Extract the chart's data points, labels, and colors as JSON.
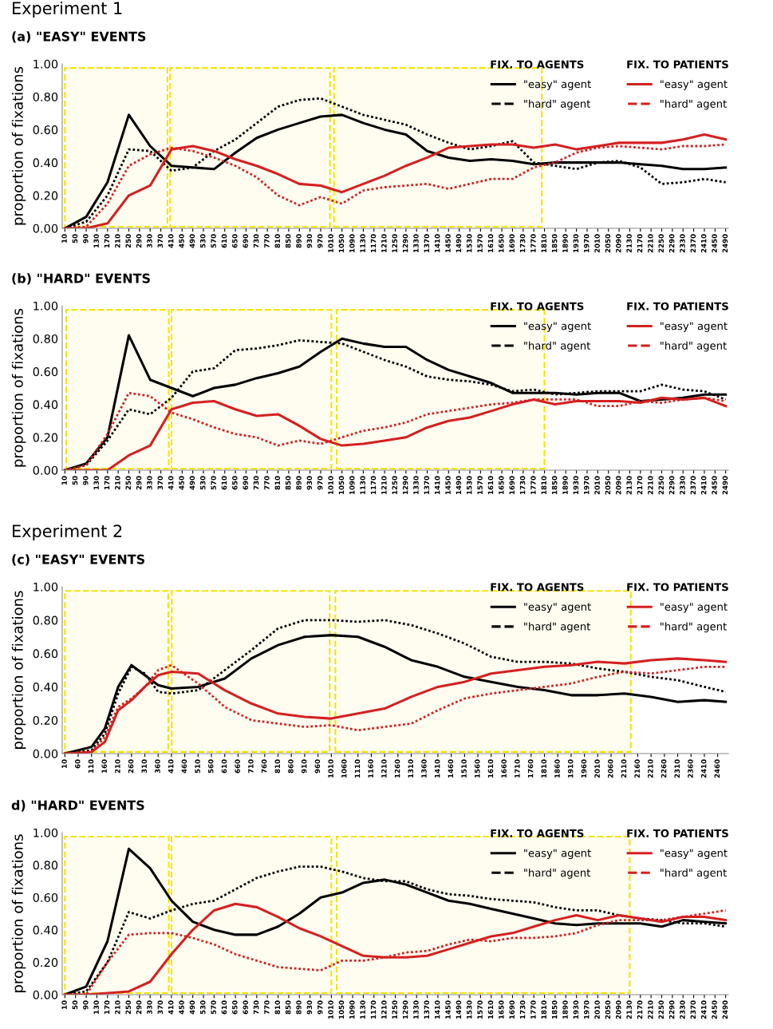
{
  "chart_data": [
    {
      "type": "line",
      "title": "Experiment 1",
      "subtitle": "(a) \"EASY\" EVENTS",
      "ylabel": "proportion of fixations",
      "legend": "top right",
      "annotations": [
        "FIX. TO AGENTS",
        "FIX. TO PATIENTS"
      ],
      "x": [
        10,
        90,
        170,
        250,
        330,
        410,
        490,
        570,
        650,
        730,
        810,
        890,
        970,
        1050,
        1130,
        1210,
        1290,
        1370,
        1450,
        1530,
        1610,
        1690,
        1770,
        1850,
        1930,
        2010,
        2090,
        2170,
        2250,
        2330,
        2410,
        2490
      ],
      "series": [
        {
          "name": "\"easy\" agent",
          "color": "#000000",
          "line_style": "solid",
          "values": [
            0,
            0.07,
            0.28,
            0.69,
            0.5,
            0.38,
            0.37,
            0.36,
            0.46,
            0.55,
            0.6,
            0.64,
            0.68,
            0.69,
            0.64,
            0.6,
            0.57,
            0.47,
            0.43,
            0.41,
            0.42,
            0.41,
            0.39,
            0.4,
            0.4,
            0.4,
            0.4,
            0.39,
            0.38,
            0.36,
            0.36,
            0.37
          ]
        },
        {
          "name": "\"hard\" agent",
          "color": "#000000",
          "line_style": "dotted",
          "values": [
            0,
            0.04,
            0.2,
            0.48,
            0.47,
            0.35,
            0.37,
            0.47,
            0.54,
            0.64,
            0.74,
            0.78,
            0.79,
            0.74,
            0.69,
            0.66,
            0.63,
            0.57,
            0.52,
            0.48,
            0.5,
            0.53,
            0.4,
            0.38,
            0.36,
            0.4,
            0.41,
            0.37,
            0.27,
            0.28,
            0.3,
            0.28
          ]
        },
        {
          "name": "\"easy\" agent",
          "color": "#d42020",
          "line_style": "solid",
          "values": [
            0,
            0,
            0.03,
            0.2,
            0.26,
            0.48,
            0.5,
            0.47,
            0.42,
            0.38,
            0.33,
            0.27,
            0.26,
            0.22,
            0.27,
            0.32,
            0.38,
            0.43,
            0.49,
            0.5,
            0.51,
            0.51,
            0.49,
            0.51,
            0.48,
            0.5,
            0.52,
            0.52,
            0.52,
            0.54,
            0.57,
            0.54
          ]
        },
        {
          "name": "\"hard\" agent",
          "color": "#d42020",
          "line_style": "dotted",
          "values": [
            0,
            0.01,
            0.15,
            0.38,
            0.45,
            0.49,
            0.47,
            0.43,
            0.38,
            0.31,
            0.2,
            0.14,
            0.19,
            0.15,
            0.23,
            0.25,
            0.26,
            0.27,
            0.24,
            0.27,
            0.3,
            0.3,
            0.37,
            0.4,
            0.46,
            0.49,
            0.5,
            0.49,
            0.48,
            0.5,
            0.5,
            0.51
          ]
        }
      ],
      "xlim": [
        0,
        2500
      ],
      "ylim": [
        0,
        1
      ],
      "yticks": [
        {
          "value": 0,
          "label": "0.00"
        },
        {
          "value": 0.2,
          "label": "0.20"
        },
        {
          "value": 0.4,
          "label": "0.40"
        },
        {
          "value": 0.6,
          "label": "0.60"
        },
        {
          "value": 0.8,
          "label": "0.80"
        },
        {
          "value": 1,
          "label": "1.00"
        }
      ],
      "xticks": [
        10,
        50,
        90,
        130,
        170,
        210,
        250,
        290,
        330,
        370,
        410,
        450,
        490,
        530,
        570,
        610,
        650,
        690,
        730,
        770,
        810,
        850,
        890,
        930,
        970,
        1010,
        1050,
        1090,
        1130,
        1170,
        1210,
        1250,
        1290,
        1330,
        1370,
        1410,
        1450,
        1490,
        1530,
        1570,
        1610,
        1650,
        1690,
        1730,
        1770,
        1810,
        1850,
        1890,
        1930,
        1970,
        2010,
        2050,
        2090,
        2130,
        2170,
        2210,
        2250,
        2290,
        2330,
        2370,
        2410,
        2450,
        2490
      ],
      "bands": [
        {
          "axis": "x",
          "from": 10,
          "to": 395,
          "color": "#f5e400"
        },
        {
          "axis": "x",
          "from": 405,
          "to": 1005,
          "color": "#f5e400"
        },
        {
          "axis": "x",
          "from": 1020,
          "to": 1800,
          "color": "#f5e400"
        }
      ]
    },
    {
      "type": "line",
      "title": "(b) \"HARD\" EVENTS",
      "ylabel": "proportion of fixations",
      "legend": "top right",
      "annotations": [
        "FIX. TO AGENTS",
        "FIX. TO PATIENTS"
      ],
      "x": [
        10,
        90,
        170,
        250,
        330,
        410,
        490,
        570,
        650,
        730,
        810,
        890,
        970,
        1050,
        1130,
        1210,
        1290,
        1370,
        1450,
        1530,
        1610,
        1690,
        1770,
        1850,
        1930,
        2010,
        2090,
        2170,
        2250,
        2330,
        2410,
        2490
      ],
      "series": [
        {
          "name": "\"easy\" agent",
          "color": "#000000",
          "line_style": "solid",
          "values": [
            0,
            0.04,
            0.2,
            0.82,
            0.55,
            0.5,
            0.45,
            0.5,
            0.52,
            0.56,
            0.59,
            0.63,
            0.72,
            0.8,
            0.77,
            0.75,
            0.75,
            0.67,
            0.61,
            0.57,
            0.53,
            0.47,
            0.47,
            0.47,
            0.46,
            0.47,
            0.47,
            0.42,
            0.43,
            0.44,
            0.46,
            0.46
          ]
        },
        {
          "name": "\"hard\" agent",
          "color": "#000000",
          "line_style": "dotted",
          "values": [
            0,
            0.03,
            0.18,
            0.37,
            0.34,
            0.44,
            0.6,
            0.62,
            0.73,
            0.74,
            0.76,
            0.79,
            0.78,
            0.77,
            0.72,
            0.67,
            0.63,
            0.57,
            0.55,
            0.54,
            0.52,
            0.48,
            0.49,
            0.46,
            0.47,
            0.48,
            0.48,
            0.48,
            0.52,
            0.49,
            0.48,
            0.43
          ]
        },
        {
          "name": "\"easy\" agent",
          "color": "#d42020",
          "line_style": "solid",
          "values": [
            0,
            0,
            0,
            0.09,
            0.15,
            0.37,
            0.41,
            0.42,
            0.37,
            0.33,
            0.34,
            0.27,
            0.19,
            0.15,
            0.16,
            0.18,
            0.2,
            0.26,
            0.3,
            0.32,
            0.36,
            0.4,
            0.43,
            0.4,
            0.42,
            0.42,
            0.42,
            0.41,
            0.44,
            0.43,
            0.44,
            0.39
          ]
        },
        {
          "name": "\"hard\" agent",
          "color": "#d42020",
          "line_style": "dotted",
          "values": [
            0,
            0.03,
            0.22,
            0.47,
            0.45,
            0.35,
            0.31,
            0.26,
            0.22,
            0.2,
            0.15,
            0.18,
            0.16,
            0.2,
            0.24,
            0.26,
            0.29,
            0.34,
            0.36,
            0.38,
            0.4,
            0.41,
            0.43,
            0.43,
            0.43,
            0.39,
            0.39,
            0.42,
            0.41,
            0.43,
            0.44,
            0.42
          ]
        }
      ],
      "xlim": [
        0,
        2500
      ],
      "ylim": [
        0,
        1
      ],
      "yticks": [
        {
          "value": 0,
          "label": "0.00"
        },
        {
          "value": 0.2,
          "label": "0.20"
        },
        {
          "value": 0.4,
          "label": "0.40"
        },
        {
          "value": 0.6,
          "label": "0.60"
        },
        {
          "value": 0.8,
          "label": "0.80"
        },
        {
          "value": 1,
          "label": "1.00"
        }
      ],
      "xticks": [
        10,
        50,
        90,
        130,
        170,
        210,
        250,
        290,
        330,
        370,
        410,
        450,
        490,
        530,
        570,
        610,
        650,
        690,
        730,
        770,
        810,
        850,
        890,
        930,
        970,
        1010,
        1050,
        1090,
        1130,
        1170,
        1210,
        1250,
        1290,
        1330,
        1370,
        1410,
        1450,
        1490,
        1530,
        1570,
        1610,
        1650,
        1690,
        1730,
        1770,
        1810,
        1850,
        1890,
        1930,
        1970,
        2010,
        2050,
        2090,
        2130,
        2170,
        2210,
        2250,
        2290,
        2330,
        2370,
        2410,
        2450,
        2490
      ],
      "bands": [
        {
          "axis": "x",
          "from": 15,
          "to": 400,
          "color": "#f5e400"
        },
        {
          "axis": "x",
          "from": 410,
          "to": 1010,
          "color": "#f5e400"
        },
        {
          "axis": "x",
          "from": 1030,
          "to": 1810,
          "color": "#f5e400"
        }
      ]
    },
    {
      "type": "line",
      "title": "Experiment 2",
      "subtitle": "(c) \"EASY\" EVENTS",
      "ylabel": "proportion of fixations",
      "legend": "top right",
      "annotations": [
        "FIX. TO AGENTS",
        "FIX. TO PATIENTS"
      ],
      "x": [
        10,
        110,
        160,
        210,
        260,
        310,
        360,
        410,
        510,
        610,
        710,
        810,
        910,
        1010,
        1110,
        1210,
        1310,
        1410,
        1510,
        1610,
        1710,
        1810,
        1910,
        2010,
        2110,
        2210,
        2310,
        2410,
        2490
      ],
      "series": [
        {
          "name": "\"easy\" agent",
          "color": "#000000",
          "line_style": "solid",
          "values": [
            0,
            0.04,
            0.15,
            0.4,
            0.53,
            0.47,
            0.41,
            0.39,
            0.4,
            0.45,
            0.57,
            0.65,
            0.7,
            0.71,
            0.7,
            0.64,
            0.56,
            0.52,
            0.46,
            0.43,
            0.4,
            0.38,
            0.35,
            0.35,
            0.36,
            0.34,
            0.31,
            0.32,
            0.31
          ]
        },
        {
          "name": "\"hard\" agent",
          "color": "#000000",
          "line_style": "dotted",
          "values": [
            0,
            0.02,
            0.12,
            0.36,
            0.52,
            0.48,
            0.37,
            0.36,
            0.38,
            0.5,
            0.62,
            0.75,
            0.8,
            0.8,
            0.79,
            0.8,
            0.77,
            0.72,
            0.66,
            0.58,
            0.55,
            0.55,
            0.54,
            0.51,
            0.49,
            0.46,
            0.44,
            0.4,
            0.37
          ]
        },
        {
          "name": "\"easy\" agent",
          "color": "#d42020",
          "line_style": "solid",
          "values": [
            0,
            0.01,
            0.07,
            0.26,
            0.32,
            0.4,
            0.47,
            0.49,
            0.48,
            0.38,
            0.3,
            0.24,
            0.22,
            0.21,
            0.24,
            0.27,
            0.34,
            0.4,
            0.43,
            0.48,
            0.5,
            0.52,
            0.53,
            0.55,
            0.54,
            0.56,
            0.57,
            0.56,
            0.55
          ]
        },
        {
          "name": "\"hard\" agent",
          "color": "#d42020",
          "line_style": "dotted",
          "values": [
            0,
            0.01,
            0.1,
            0.28,
            0.33,
            0.4,
            0.5,
            0.53,
            0.42,
            0.28,
            0.2,
            0.18,
            0.16,
            0.17,
            0.14,
            0.16,
            0.18,
            0.26,
            0.33,
            0.36,
            0.38,
            0.4,
            0.42,
            0.46,
            0.49,
            0.48,
            0.5,
            0.52,
            0.52
          ]
        }
      ],
      "xlim": [
        0,
        2500
      ],
      "ylim": [
        0,
        1
      ],
      "yticks": [
        {
          "value": 0,
          "label": "0.00"
        },
        {
          "value": 0.2,
          "label": "0.20"
        },
        {
          "value": 0.4,
          "label": "0.40"
        },
        {
          "value": 0.6,
          "label": "0.60"
        },
        {
          "value": 0.8,
          "label": "0.80"
        },
        {
          "value": 1,
          "label": "1.00"
        }
      ],
      "xticks": [
        10,
        60,
        110,
        160,
        210,
        260,
        310,
        360,
        410,
        460,
        510,
        560,
        610,
        660,
        710,
        760,
        810,
        860,
        910,
        960,
        1010,
        1060,
        1110,
        1160,
        1210,
        1260,
        1310,
        1360,
        1410,
        1460,
        1510,
        1560,
        1610,
        1660,
        1710,
        1760,
        1810,
        1860,
        1910,
        1960,
        2010,
        2060,
        2110,
        2160,
        2210,
        2260,
        2310,
        2360,
        2410,
        2460
      ],
      "bands": [
        {
          "axis": "x",
          "from": 10,
          "to": 398,
          "color": "#f5e400"
        },
        {
          "axis": "x",
          "from": 411,
          "to": 1004,
          "color": "#f5e400"
        },
        {
          "axis": "x",
          "from": 1025,
          "to": 2134,
          "color": "#f5e400"
        }
      ]
    },
    {
      "type": "line",
      "title": "d) \"HARD\" EVENTS",
      "ylabel": "proportion of fixations",
      "legend": "top right",
      "annotations": [
        "FIX. TO AGENTS",
        "FIX. TO PATIENTS"
      ],
      "x": [
        10,
        90,
        170,
        250,
        330,
        410,
        490,
        570,
        650,
        730,
        810,
        890,
        970,
        1050,
        1130,
        1210,
        1290,
        1370,
        1450,
        1530,
        1610,
        1690,
        1770,
        1850,
        1930,
        2010,
        2090,
        2170,
        2250,
        2330,
        2410,
        2490
      ],
      "series": [
        {
          "name": "\"easy\" agent",
          "color": "#000000",
          "line_style": "solid",
          "values": [
            0,
            0.05,
            0.33,
            0.9,
            0.78,
            0.58,
            0.45,
            0.4,
            0.37,
            0.37,
            0.42,
            0.5,
            0.6,
            0.63,
            0.69,
            0.71,
            0.68,
            0.63,
            0.58,
            0.56,
            0.53,
            0.5,
            0.47,
            0.44,
            0.43,
            0.44,
            0.44,
            0.44,
            0.42,
            0.46,
            0.45,
            0.44
          ]
        },
        {
          "name": "\"hard\" agent",
          "color": "#000000",
          "line_style": "dotted",
          "values": [
            0,
            0.02,
            0.2,
            0.51,
            0.47,
            0.52,
            0.56,
            0.58,
            0.65,
            0.72,
            0.76,
            0.79,
            0.79,
            0.76,
            0.72,
            0.7,
            0.7,
            0.65,
            0.62,
            0.61,
            0.59,
            0.58,
            0.57,
            0.54,
            0.52,
            0.52,
            0.49,
            0.47,
            0.46,
            0.44,
            0.44,
            0.42
          ]
        },
        {
          "name": "\"easy\" agent",
          "color": "#d42020",
          "line_style": "solid",
          "values": [
            0,
            0,
            0.01,
            0.02,
            0.08,
            0.25,
            0.4,
            0.52,
            0.56,
            0.54,
            0.48,
            0.41,
            0.36,
            0.3,
            0.24,
            0.23,
            0.23,
            0.24,
            0.28,
            0.32,
            0.36,
            0.38,
            0.42,
            0.46,
            0.49,
            0.46,
            0.49,
            0.47,
            0.45,
            0.48,
            0.48,
            0.46
          ]
        },
        {
          "name": "\"hard\" agent",
          "color": "#d42020",
          "line_style": "dotted",
          "values": [
            0,
            0,
            0.2,
            0.37,
            0.38,
            0.38,
            0.35,
            0.31,
            0.25,
            0.21,
            0.17,
            0.16,
            0.15,
            0.21,
            0.21,
            0.23,
            0.26,
            0.27,
            0.31,
            0.34,
            0.33,
            0.35,
            0.35,
            0.36,
            0.38,
            0.43,
            0.46,
            0.46,
            0.46,
            0.48,
            0.5,
            0.52
          ]
        }
      ],
      "xlim": [
        0,
        2500
      ],
      "ylim": [
        0,
        1
      ],
      "yticks": [
        {
          "value": 0,
          "label": "0.00"
        },
        {
          "value": 0.2,
          "label": "0.20"
        },
        {
          "value": 0.4,
          "label": "0.40"
        },
        {
          "value": 0.6,
          "label": "0.60"
        },
        {
          "value": 0.8,
          "label": "0.80"
        },
        {
          "value": 1,
          "label": "1.00"
        }
      ],
      "xticks": [
        10,
        50,
        90,
        130,
        170,
        210,
        250,
        290,
        330,
        370,
        410,
        450,
        490,
        530,
        570,
        610,
        650,
        690,
        730,
        770,
        810,
        850,
        890,
        930,
        970,
        1010,
        1050,
        1090,
        1130,
        1170,
        1210,
        1250,
        1290,
        1330,
        1370,
        1410,
        1450,
        1490,
        1530,
        1570,
        1610,
        1650,
        1690,
        1730,
        1770,
        1810,
        1850,
        1890,
        1930,
        1970,
        2010,
        2050,
        2090,
        2130,
        2170,
        2210,
        2250,
        2290,
        2330,
        2370,
        2410,
        2450,
        2490
      ],
      "bands": [
        {
          "axis": "x",
          "from": 10,
          "to": 400,
          "color": "#f5e400"
        },
        {
          "axis": "x",
          "from": 410,
          "to": 1010,
          "color": "#f5e400"
        },
        {
          "axis": "x",
          "from": 1030,
          "to": 2130,
          "color": "#f5e400"
        }
      ]
    }
  ]
}
